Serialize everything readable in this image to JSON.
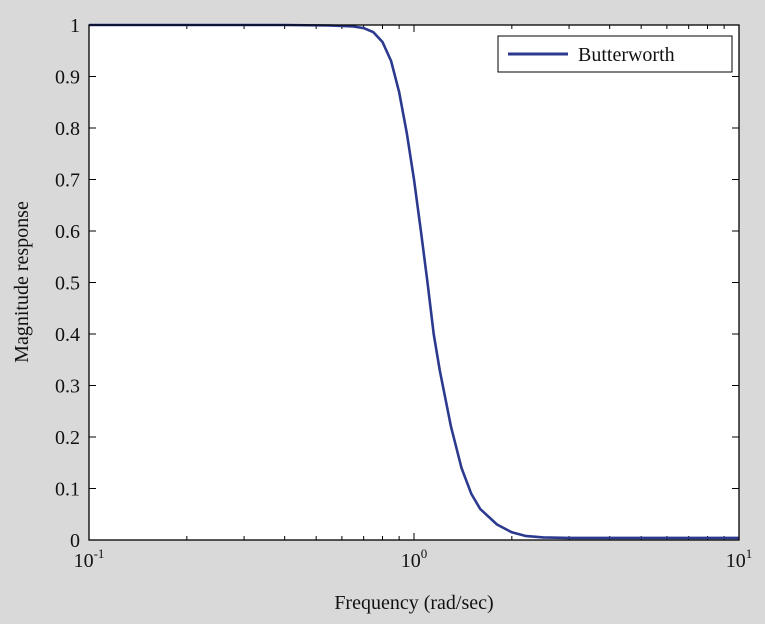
{
  "chart_data": {
    "type": "line",
    "title": "",
    "xlabel": "Frequency (rad/sec)",
    "ylabel": "Magnitude response",
    "xscale": "log",
    "xlim": [
      0.1,
      10
    ],
    "ylim": [
      0,
      1
    ],
    "grid": false,
    "legend_position": "top-right",
    "x_ticks": [
      {
        "value": 0.1,
        "base": "10",
        "exp": "-1"
      },
      {
        "value": 1,
        "base": "10",
        "exp": "0"
      },
      {
        "value": 10,
        "base": "10",
        "exp": "1"
      }
    ],
    "y_ticks": [
      {
        "value": 0,
        "label": "0"
      },
      {
        "value": 0.1,
        "label": "0.1"
      },
      {
        "value": 0.2,
        "label": "0.2"
      },
      {
        "value": 0.3,
        "label": "0.3"
      },
      {
        "value": 0.4,
        "label": "0.4"
      },
      {
        "value": 0.5,
        "label": "0.5"
      },
      {
        "value": 0.6,
        "label": "0.6"
      },
      {
        "value": 0.7,
        "label": "0.7"
      },
      {
        "value": 0.8,
        "label": "0.8"
      },
      {
        "value": 0.9,
        "label": "0.9"
      },
      {
        "value": 1,
        "label": "1"
      }
    ],
    "series": [
      {
        "name": "Butterworth",
        "color": "#2b3a8f",
        "x": [
          0.1,
          0.2,
          0.4,
          0.55,
          0.65,
          0.7,
          0.75,
          0.8,
          0.85,
          0.9,
          0.95,
          1.0,
          1.05,
          1.1,
          1.15,
          1.2,
          1.3,
          1.4,
          1.5,
          1.6,
          1.8,
          2.0,
          2.2,
          2.5,
          3.0,
          4.0,
          6.0,
          10.0
        ],
        "y": [
          1.0,
          1.0,
          1.0,
          0.999,
          0.997,
          0.994,
          0.986,
          0.967,
          0.93,
          0.87,
          0.79,
          0.7,
          0.6,
          0.5,
          0.4,
          0.33,
          0.22,
          0.14,
          0.09,
          0.06,
          0.03,
          0.015,
          0.008,
          0.005,
          0.004,
          0.004,
          0.004,
          0.004
        ]
      }
    ]
  }
}
